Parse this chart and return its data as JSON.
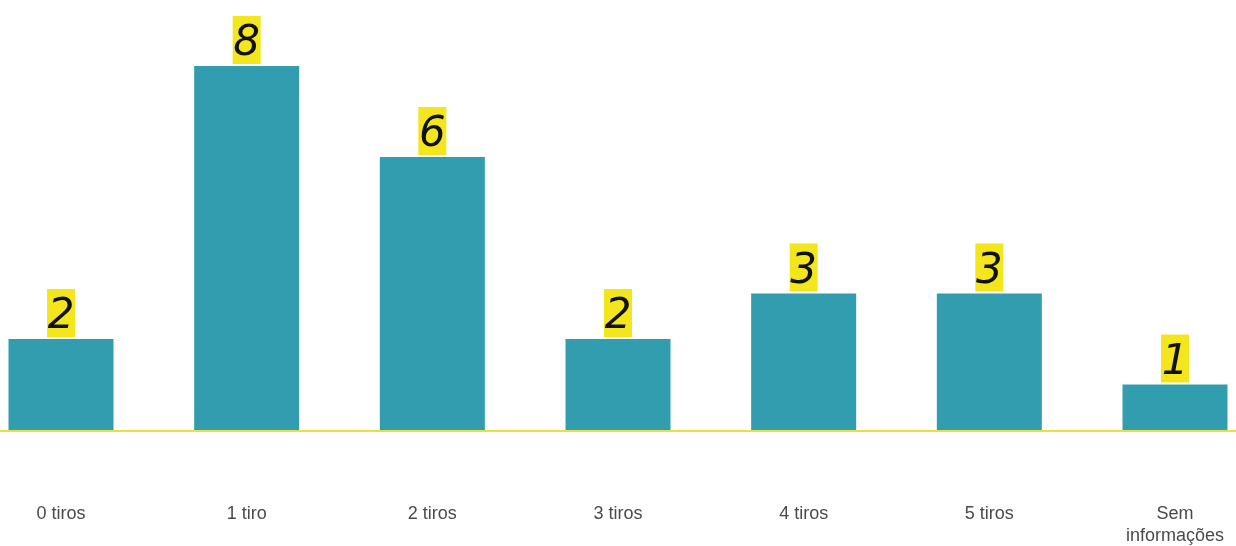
{
  "chart_data": {
    "type": "bar",
    "categories": [
      "0 tiros",
      "1 tiro",
      "2 tiros",
      "3 tiros",
      "4 tiros",
      "5 tiros",
      "Sem informações"
    ],
    "values": [
      2,
      8,
      6,
      2,
      3,
      3,
      1
    ],
    "color": "#329dae",
    "data_labels": true
  }
}
